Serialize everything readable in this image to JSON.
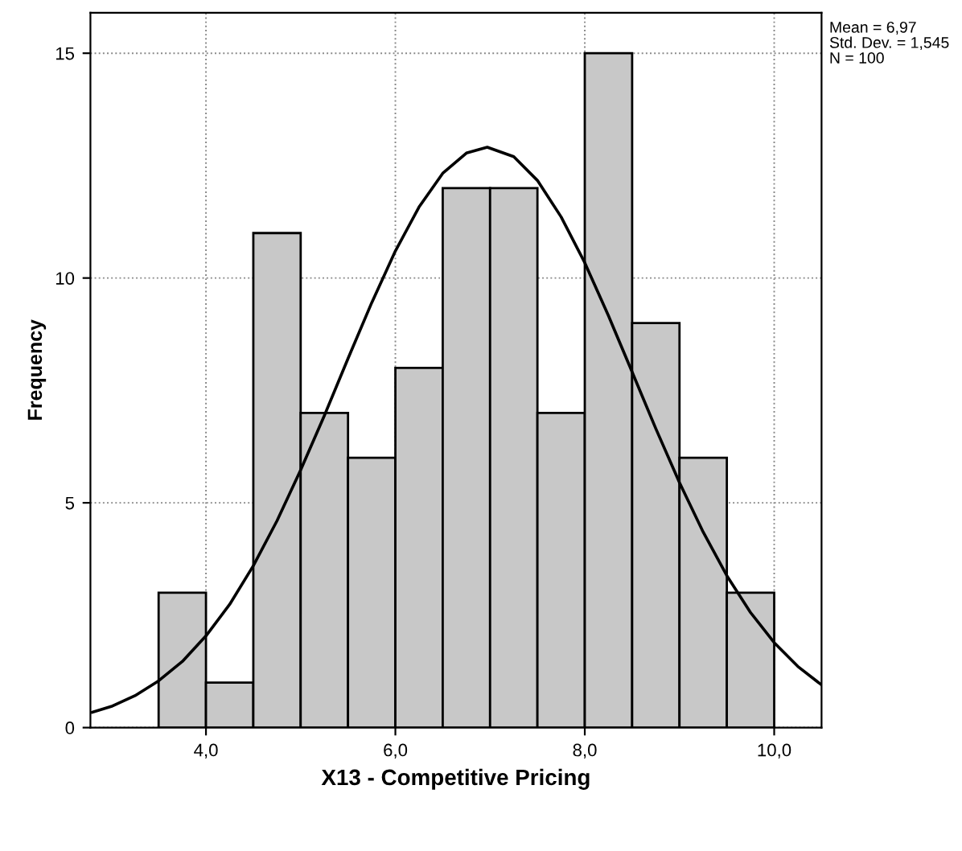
{
  "chart_data": {
    "type": "histogram",
    "xlabel": "X13 - Competitive Pricing",
    "ylabel": "Frequency",
    "bins": [
      3.5,
      4.0,
      4.5,
      5.0,
      5.5,
      6.0,
      6.5,
      7.0,
      7.5,
      8.0,
      8.5,
      9.0,
      9.5,
      10.0
    ],
    "values": [
      3,
      1,
      11,
      7,
      6,
      8,
      12,
      12,
      7,
      15,
      9,
      6,
      3
    ],
    "color": "#c8c8c8",
    "series": [
      {
        "type": "line",
        "color": "#000000",
        "x": [
          2.8,
          3.0,
          3.25,
          3.5,
          3.75,
          4.0,
          4.25,
          4.5,
          4.75,
          5.0,
          5.25,
          5.5,
          5.75,
          6.0,
          6.25,
          6.5,
          6.75,
          6.97,
          7.25,
          7.5,
          7.75,
          8.0,
          8.25,
          8.5,
          8.75,
          9.0,
          9.25,
          9.5,
          9.75,
          10.0,
          10.25,
          10.5
        ],
        "values": [
          0.34,
          0.47,
          0.71,
          1.04,
          1.47,
          2.04,
          2.74,
          3.6,
          4.6,
          5.73,
          6.94,
          8.21,
          9.45,
          10.6,
          11.58,
          12.33,
          12.78,
          12.91,
          12.7,
          12.17,
          11.36,
          10.34,
          9.16,
          7.91,
          6.65,
          5.45,
          4.35,
          3.38,
          2.56,
          1.89,
          1.36,
          0.95
        ]
      }
    ],
    "xlim": [
      2.78,
      10.5
    ],
    "ylim": [
      0,
      15.9
    ],
    "xticks": [
      {
        "value": 4,
        "label": "4,0"
      },
      {
        "value": 6,
        "label": "6,0"
      },
      {
        "value": 8,
        "label": "8,0"
      },
      {
        "value": 10,
        "label": "10,0"
      }
    ],
    "yticks": [
      0,
      5,
      10,
      15
    ],
    "grid": true,
    "annotations": [
      "Mean = 6,97",
      "Std. Dev. = 1,545",
      "N = 100"
    ]
  }
}
